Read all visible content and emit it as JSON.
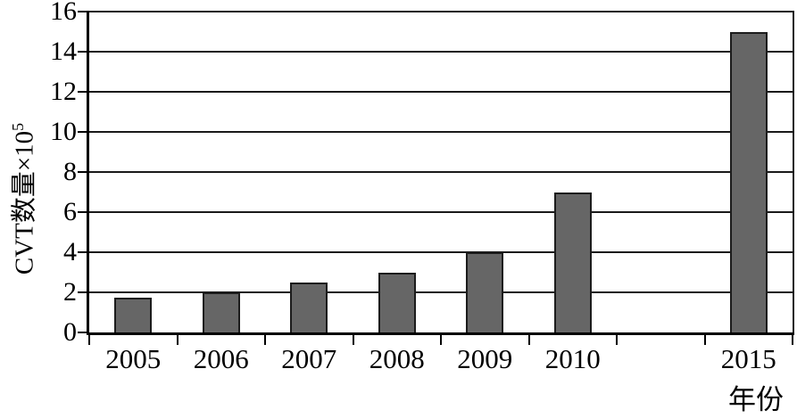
{
  "chart_data": {
    "type": "bar",
    "title": "",
    "xlabel": "年份",
    "ylabel": "CVT数量×10⁵",
    "ylabel_base": "CVT数量×10",
    "ylabel_exponent": "5",
    "categories": [
      "2005",
      "2006",
      "2007",
      "2008",
      "2009",
      "2010",
      "2015"
    ],
    "values": [
      1.75,
      2,
      2.5,
      3,
      4,
      7,
      15
    ],
    "slot_indices": [
      0,
      1,
      2,
      3,
      4,
      5,
      7
    ],
    "num_slots": 8,
    "ylim": [
      0,
      16
    ],
    "yticks": [
      0,
      2,
      4,
      6,
      8,
      10,
      12,
      14,
      16
    ],
    "grid": "horizontal",
    "legend": null,
    "colors": {
      "bar_fill": "#666666",
      "bar_border": "#1c1c1c",
      "axis": "#000000",
      "gridline": "#1a1a1a",
      "background": "#ffffff",
      "text": "#000000"
    }
  }
}
